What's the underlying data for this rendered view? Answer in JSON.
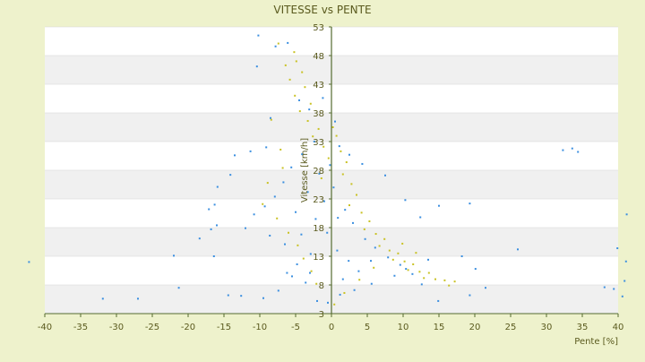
{
  "chart_data": {
    "type": "scatter",
    "title": "VITESSE vs PENTE",
    "xlabel": "Pente [%]",
    "ylabel": "Vitesse [km/h]",
    "xlim": [
      -40,
      40
    ],
    "ylim": [
      3,
      53
    ],
    "x_ticks": [
      -40,
      -35,
      -30,
      -25,
      -20,
      -15,
      -10,
      -5,
      0,
      5,
      10,
      15,
      20,
      25,
      30,
      35,
      40
    ],
    "y_ticks": [
      3,
      8,
      13,
      18,
      23,
      28,
      33,
      38,
      43,
      48,
      53
    ],
    "band_step": 5,
    "grid": true,
    "legend": "none",
    "colors": {
      "background": "#eef2cc",
      "plot_band_light": "#ffffff",
      "plot_band_dark": "#f0f0f0",
      "series_main": "#3b8fe0",
      "series_secondary": "#c9c224",
      "axis": "#556b2f",
      "text": "#5a5a1e"
    },
    "series": [
      {
        "role": "main",
        "color": "#3b8fe0",
        "points": [
          [
            -10.2,
            51.5
          ],
          [
            -10.4,
            46.1
          ],
          [
            -7.8,
            49.6
          ],
          [
            -6.1,
            50.2
          ],
          [
            -4.5,
            40.2
          ],
          [
            -3.1,
            38.6
          ],
          [
            -8.5,
            37.1
          ],
          [
            -9.1,
            32.0
          ],
          [
            -11.3,
            31.3
          ],
          [
            -13.5,
            30.6
          ],
          [
            -14.1,
            27.2
          ],
          [
            -15.9,
            25.1
          ],
          [
            -16.3,
            22.0
          ],
          [
            -17.1,
            21.2
          ],
          [
            -16.0,
            18.4
          ],
          [
            -16.8,
            17.7
          ],
          [
            -18.4,
            16.1
          ],
          [
            -22.0,
            13.1
          ],
          [
            -16.4,
            13.0
          ],
          [
            -42.2,
            12.0
          ],
          [
            -31.9,
            5.6
          ],
          [
            -27.0,
            5.6
          ],
          [
            -21.3,
            7.5
          ],
          [
            -14.4,
            6.2
          ],
          [
            -12.6,
            6.1
          ],
          [
            -9.5,
            5.7
          ],
          [
            -7.4,
            7.0
          ],
          [
            -5.5,
            9.5
          ],
          [
            -3.0,
            10.1
          ],
          [
            -2.0,
            5.2
          ],
          [
            -0.5,
            4.9
          ],
          [
            1.2,
            6.3
          ],
          [
            3.2,
            7.1
          ],
          [
            5.6,
            8.2
          ],
          [
            8.8,
            9.6
          ],
          [
            10.4,
            10.8
          ],
          [
            13.5,
            12.4
          ],
          [
            18.2,
            13.0
          ],
          [
            20.1,
            10.8
          ],
          [
            21.5,
            7.5
          ],
          [
            19.3,
            6.2
          ],
          [
            14.9,
            5.2
          ],
          [
            26.0,
            14.2
          ],
          [
            32.3,
            31.5
          ],
          [
            33.6,
            31.8
          ],
          [
            34.4,
            31.2
          ],
          [
            39.9,
            14.4
          ],
          [
            41.1,
            12.1
          ],
          [
            40.6,
            6.0
          ],
          [
            38.1,
            7.6
          ],
          [
            39.4,
            7.3
          ],
          [
            40.9,
            8.7
          ],
          [
            41.2,
            20.3
          ],
          [
            19.3,
            22.2
          ],
          [
            15.0,
            21.8
          ],
          [
            12.4,
            19.8
          ],
          [
            10.3,
            22.8
          ],
          [
            7.5,
            27.1
          ],
          [
            4.3,
            29.1
          ],
          [
            2.5,
            30.7
          ],
          [
            1.1,
            32.2
          ],
          [
            0.5,
            36.5
          ],
          [
            -1.2,
            40.6
          ],
          [
            -2.4,
            33.0
          ],
          [
            -4.1,
            30.8
          ],
          [
            -5.6,
            28.5
          ],
          [
            -6.7,
            25.9
          ],
          [
            -7.9,
            23.4
          ],
          [
            -9.3,
            21.7
          ],
          [
            -10.8,
            20.3
          ],
          [
            -12.0,
            17.9
          ],
          [
            -8.6,
            16.6
          ],
          [
            -6.5,
            15.1
          ],
          [
            -4.2,
            16.8
          ],
          [
            -2.2,
            19.5
          ],
          [
            -1.0,
            22.6
          ],
          [
            0.3,
            25.0
          ],
          [
            1.9,
            21.1
          ],
          [
            3.0,
            18.8
          ],
          [
            4.7,
            16.0
          ],
          [
            6.1,
            14.5
          ],
          [
            7.9,
            12.8
          ],
          [
            9.6,
            11.5
          ],
          [
            11.3,
            9.9
          ],
          [
            12.6,
            8.1
          ],
          [
            2.4,
            12.2
          ],
          [
            0.8,
            14.0
          ],
          [
            -0.6,
            17.1
          ],
          [
            -2.9,
            13.4
          ],
          [
            -4.8,
            11.6
          ],
          [
            -6.2,
            10.1
          ],
          [
            -3.6,
            8.4
          ],
          [
            1.6,
            9.0
          ],
          [
            3.8,
            10.4
          ],
          [
            5.5,
            12.2
          ],
          [
            -1.7,
            27.4
          ],
          [
            -3.3,
            24.2
          ],
          [
            -5.0,
            20.7
          ],
          [
            -0.2,
            28.9
          ],
          [
            0.9,
            19.7
          ]
        ]
      },
      {
        "role": "secondary",
        "color": "#c9c224",
        "points": [
          [
            -7.4,
            50.1
          ],
          [
            -5.2,
            48.6
          ],
          [
            -4.9,
            47.0
          ],
          [
            -6.4,
            46.3
          ],
          [
            -4.1,
            45.1
          ],
          [
            -5.8,
            43.8
          ],
          [
            -3.7,
            42.5
          ],
          [
            -5.1,
            41.0
          ],
          [
            -2.9,
            39.6
          ],
          [
            -4.4,
            38.3
          ],
          [
            -3.3,
            36.6
          ],
          [
            -1.8,
            35.2
          ],
          [
            -2.6,
            33.9
          ],
          [
            0.2,
            35.5
          ],
          [
            0.7,
            34.0
          ],
          [
            -1.1,
            32.1
          ],
          [
            1.3,
            31.3
          ],
          [
            -0.4,
            30.1
          ],
          [
            2.1,
            29.4
          ],
          [
            1.6,
            27.3
          ],
          [
            -1.4,
            26.6
          ],
          [
            2.8,
            25.6
          ],
          [
            3.5,
            23.7
          ],
          [
            2.5,
            21.9
          ],
          [
            4.2,
            20.6
          ],
          [
            5.3,
            19.1
          ],
          [
            4.6,
            17.7
          ],
          [
            6.2,
            16.9
          ],
          [
            7.4,
            16.0
          ],
          [
            6.7,
            14.8
          ],
          [
            8.1,
            14.0
          ],
          [
            9.3,
            13.5
          ],
          [
            8.6,
            12.4
          ],
          [
            10.2,
            12.1
          ],
          [
            11.4,
            11.6
          ],
          [
            10.7,
            10.6
          ],
          [
            12.3,
            10.3
          ],
          [
            13.6,
            10.1
          ],
          [
            12.9,
            9.2
          ],
          [
            14.5,
            9.0
          ],
          [
            15.8,
            8.8
          ],
          [
            17.2,
            8.6
          ],
          [
            16.4,
            7.9
          ],
          [
            -8.4,
            36.8
          ],
          [
            -7.1,
            31.6
          ],
          [
            -6.8,
            28.4
          ],
          [
            -8.9,
            25.8
          ],
          [
            -9.6,
            22.1
          ],
          [
            -7.6,
            19.6
          ],
          [
            -6.0,
            17.1
          ],
          [
            -4.7,
            14.9
          ],
          [
            -3.9,
            12.6
          ],
          [
            -2.8,
            10.4
          ],
          [
            -2.1,
            8.2
          ],
          [
            0.4,
            4.6
          ],
          [
            1.8,
            6.6
          ],
          [
            3.9,
            8.9
          ],
          [
            5.9,
            11.0
          ],
          [
            9.9,
            15.2
          ],
          [
            11.8,
            13.6
          ]
        ]
      }
    ]
  }
}
